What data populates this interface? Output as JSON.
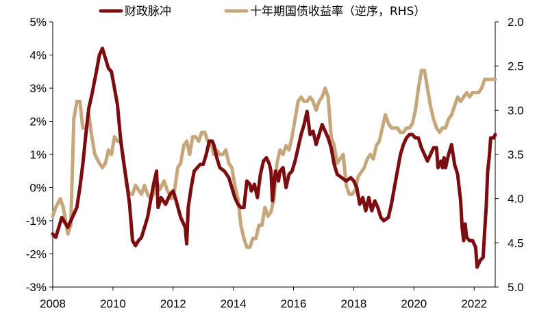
{
  "chart_data": {
    "type": "line",
    "title": "",
    "xlabel": "",
    "ylabel": "",
    "legend_placement": "top",
    "grid": false,
    "x_ticks": [
      "2008",
      "2010",
      "2012",
      "2014",
      "2016",
      "2018",
      "2020",
      "2022"
    ],
    "y_left_ticks": [
      "5%",
      "4%",
      "3%",
      "2%",
      "1%",
      "0%",
      "-1%",
      "-2%",
      "-3%"
    ],
    "y_right_ticks": [
      "2.0",
      "2.5",
      "3.0",
      "3.5",
      "4.0",
      "4.5",
      "5.0"
    ],
    "ylim_left": [
      -3,
      5
    ],
    "ylim_right_inverted": [
      2.0,
      5.0
    ],
    "xlim": [
      2008.0,
      2022.7
    ],
    "series": [
      {
        "name": "财政脉冲",
        "axis": "left",
        "color": "#7b0c10",
        "points": [
          [
            2008.0,
            -1.4
          ],
          [
            2008.1,
            -1.5
          ],
          [
            2008.3,
            -0.9
          ],
          [
            2008.5,
            -1.2
          ],
          [
            2008.65,
            -0.9
          ],
          [
            2008.8,
            -0.6
          ],
          [
            2008.9,
            0.0
          ],
          [
            2009.0,
            0.7
          ],
          [
            2009.1,
            1.6
          ],
          [
            2009.2,
            2.4
          ],
          [
            2009.3,
            2.8
          ],
          [
            2009.45,
            3.5
          ],
          [
            2009.55,
            4.0
          ],
          [
            2009.65,
            4.2
          ],
          [
            2009.75,
            3.9
          ],
          [
            2009.85,
            3.6
          ],
          [
            2009.95,
            3.5
          ],
          [
            2010.05,
            3.0
          ],
          [
            2010.15,
            2.5
          ],
          [
            2010.25,
            1.5
          ],
          [
            2010.35,
            0.8
          ],
          [
            2010.45,
            0.2
          ],
          [
            2010.55,
            -0.5
          ],
          [
            2010.65,
            -1.6
          ],
          [
            2010.75,
            -1.75
          ],
          [
            2010.85,
            -1.6
          ],
          [
            2010.95,
            -1.5
          ],
          [
            2011.05,
            -1.2
          ],
          [
            2011.15,
            -0.9
          ],
          [
            2011.25,
            -0.4
          ],
          [
            2011.35,
            0.1
          ],
          [
            2011.45,
            0.5
          ],
          [
            2011.5,
            -0.6
          ],
          [
            2011.6,
            -0.3
          ],
          [
            2011.75,
            -0.5
          ],
          [
            2011.9,
            -0.2
          ],
          [
            2012.0,
            -0.1
          ],
          [
            2012.1,
            -0.4
          ],
          [
            2012.25,
            -0.9
          ],
          [
            2012.4,
            -1.2
          ],
          [
            2012.45,
            -1.7
          ],
          [
            2012.5,
            -0.6
          ],
          [
            2012.6,
            0.0
          ],
          [
            2012.7,
            0.5
          ],
          [
            2012.8,
            0.6
          ],
          [
            2012.9,
            0.7
          ],
          [
            2013.0,
            0.7
          ],
          [
            2013.1,
            1.0
          ],
          [
            2013.2,
            1.4
          ],
          [
            2013.3,
            1.4
          ],
          [
            2013.35,
            1.3
          ],
          [
            2013.45,
            0.9
          ],
          [
            2013.55,
            0.6
          ],
          [
            2013.7,
            0.5
          ],
          [
            2013.85,
            0.3
          ],
          [
            2013.95,
            0.0
          ],
          [
            2014.05,
            -0.3
          ],
          [
            2014.15,
            -0.5
          ],
          [
            2014.25,
            -0.6
          ],
          [
            2014.35,
            -0.6
          ],
          [
            2014.45,
            0.2
          ],
          [
            2014.55,
            0.1
          ],
          [
            2014.6,
            -0.1
          ],
          [
            2014.7,
            0.1
          ],
          [
            2014.8,
            -0.3
          ],
          [
            2014.9,
            0.4
          ],
          [
            2015.0,
            0.8
          ],
          [
            2015.1,
            0.9
          ],
          [
            2015.2,
            0.7
          ],
          [
            2015.25,
            0.5
          ],
          [
            2015.3,
            -0.4
          ],
          [
            2015.4,
            0.5
          ],
          [
            2015.5,
            0.2
          ],
          [
            2015.55,
            0.5
          ],
          [
            2015.65,
            0.6
          ],
          [
            2015.75,
            0.0
          ],
          [
            2015.85,
            0.4
          ],
          [
            2015.95,
            0.5
          ],
          [
            2016.05,
            0.8
          ],
          [
            2016.15,
            1.2
          ],
          [
            2016.25,
            1.6
          ],
          [
            2016.35,
            1.9
          ],
          [
            2016.45,
            2.3
          ],
          [
            2016.55,
            1.6
          ],
          [
            2016.65,
            1.7
          ],
          [
            2016.75,
            1.3
          ],
          [
            2016.85,
            1.6
          ],
          [
            2016.95,
            1.9
          ],
          [
            2017.05,
            1.7
          ],
          [
            2017.15,
            1.5
          ],
          [
            2017.25,
            1.2
          ],
          [
            2017.35,
            0.7
          ],
          [
            2017.45,
            0.4
          ],
          [
            2017.6,
            0.3
          ],
          [
            2017.75,
            0.2
          ],
          [
            2017.9,
            0.3
          ],
          [
            2018.0,
            0.2
          ],
          [
            2018.1,
            0.0
          ],
          [
            2018.2,
            -0.5
          ],
          [
            2018.3,
            -0.3
          ],
          [
            2018.4,
            -0.7
          ],
          [
            2018.5,
            -0.3
          ],
          [
            2018.6,
            -0.7
          ],
          [
            2018.7,
            -0.4
          ],
          [
            2018.8,
            -0.6
          ],
          [
            2018.9,
            -0.9
          ],
          [
            2019.0,
            -1.0
          ],
          [
            2019.15,
            -0.9
          ],
          [
            2019.25,
            -0.5
          ],
          [
            2019.35,
            0.0
          ],
          [
            2019.45,
            0.5
          ],
          [
            2019.55,
            1.0
          ],
          [
            2019.65,
            1.3
          ],
          [
            2019.75,
            1.5
          ],
          [
            2019.85,
            1.6
          ],
          [
            2019.95,
            1.6
          ],
          [
            2020.05,
            1.5
          ],
          [
            2020.15,
            1.5
          ],
          [
            2020.25,
            1.2
          ],
          [
            2020.35,
            1.0
          ],
          [
            2020.45,
            0.8
          ],
          [
            2020.55,
            1.0
          ],
          [
            2020.65,
            1.2
          ],
          [
            2020.75,
            1.2
          ],
          [
            2020.8,
            0.6
          ],
          [
            2020.9,
            0.8
          ],
          [
            2020.95,
            0.6
          ],
          [
            2021.0,
            0.9
          ],
          [
            2021.05,
            0.6
          ],
          [
            2021.15,
            1.0
          ],
          [
            2021.25,
            1.3
          ],
          [
            2021.35,
            0.7
          ],
          [
            2021.45,
            0.4
          ],
          [
            2021.55,
            -0.4
          ],
          [
            2021.6,
            -1.2
          ],
          [
            2021.65,
            -1.6
          ],
          [
            2021.7,
            -1.1
          ],
          [
            2021.75,
            -1.5
          ],
          [
            2021.85,
            -1.6
          ],
          [
            2021.95,
            -1.6
          ],
          [
            2022.05,
            -1.8
          ],
          [
            2022.1,
            -2.4
          ],
          [
            2022.2,
            -2.2
          ],
          [
            2022.3,
            -2.1
          ],
          [
            2022.35,
            -1.3
          ],
          [
            2022.4,
            -0.6
          ],
          [
            2022.45,
            0.5
          ],
          [
            2022.5,
            0.9
          ],
          [
            2022.55,
            1.5
          ],
          [
            2022.65,
            1.5
          ],
          [
            2022.7,
            1.6
          ]
        ]
      },
      {
        "name": "十年期国债收益率（逆序，RHS）",
        "axis": "right",
        "color": "#c6a67b",
        "points": [
          [
            2008.0,
            4.2
          ],
          [
            2008.1,
            4.1
          ],
          [
            2008.25,
            4.0
          ],
          [
            2008.35,
            4.1
          ],
          [
            2008.5,
            4.4
          ],
          [
            2008.6,
            4.3
          ],
          [
            2008.7,
            3.1
          ],
          [
            2008.8,
            2.9
          ],
          [
            2008.9,
            2.9
          ],
          [
            2009.0,
            3.2
          ],
          [
            2009.1,
            3.2
          ],
          [
            2009.2,
            3.05
          ],
          [
            2009.3,
            3.3
          ],
          [
            2009.4,
            3.5
          ],
          [
            2009.55,
            3.6
          ],
          [
            2009.65,
            3.65
          ],
          [
            2009.75,
            3.6
          ],
          [
            2009.85,
            3.45
          ],
          [
            2009.95,
            3.5
          ],
          [
            2010.05,
            3.3
          ],
          [
            2010.15,
            3.35
          ],
          [
            2010.25,
            3.35
          ],
          [
            2010.35,
            3.55
          ],
          [
            2010.45,
            3.85
          ],
          [
            2010.55,
            3.95
          ],
          [
            2010.65,
            3.95
          ],
          [
            2010.75,
            3.85
          ],
          [
            2010.85,
            3.9
          ],
          [
            2010.95,
            3.95
          ],
          [
            2011.05,
            3.85
          ],
          [
            2011.15,
            3.95
          ],
          [
            2011.25,
            4.0
          ],
          [
            2011.35,
            3.95
          ],
          [
            2011.45,
            3.8
          ],
          [
            2011.55,
            3.9
          ],
          [
            2011.7,
            3.8
          ],
          [
            2011.8,
            3.9
          ],
          [
            2011.95,
            4.0
          ],
          [
            2012.05,
            3.9
          ],
          [
            2012.15,
            3.65
          ],
          [
            2012.25,
            3.6
          ],
          [
            2012.35,
            3.4
          ],
          [
            2012.45,
            3.35
          ],
          [
            2012.55,
            3.5
          ],
          [
            2012.65,
            3.3
          ],
          [
            2012.75,
            3.3
          ],
          [
            2012.85,
            3.35
          ],
          [
            2012.95,
            3.25
          ],
          [
            2013.05,
            3.25
          ],
          [
            2013.15,
            3.35
          ],
          [
            2013.25,
            3.35
          ],
          [
            2013.35,
            3.5
          ],
          [
            2013.45,
            3.45
          ],
          [
            2013.55,
            3.5
          ],
          [
            2013.65,
            3.5
          ],
          [
            2013.75,
            3.45
          ],
          [
            2013.85,
            3.6
          ],
          [
            2013.95,
            3.65
          ],
          [
            2014.05,
            3.85
          ],
          [
            2014.15,
            4.0
          ],
          [
            2014.25,
            4.3
          ],
          [
            2014.35,
            4.45
          ],
          [
            2014.45,
            4.55
          ],
          [
            2014.55,
            4.55
          ],
          [
            2014.65,
            4.45
          ],
          [
            2014.75,
            4.45
          ],
          [
            2014.85,
            4.3
          ],
          [
            2014.95,
            4.3
          ],
          [
            2015.05,
            4.1
          ],
          [
            2015.15,
            4.2
          ],
          [
            2015.25,
            4.15
          ],
          [
            2015.35,
            4.0
          ],
          [
            2015.45,
            3.6
          ],
          [
            2015.55,
            3.45
          ],
          [
            2015.65,
            3.5
          ],
          [
            2015.75,
            3.4
          ],
          [
            2015.85,
            3.45
          ],
          [
            2015.95,
            3.3
          ],
          [
            2016.05,
            3.1
          ],
          [
            2016.15,
            2.9
          ],
          [
            2016.25,
            2.85
          ],
          [
            2016.35,
            2.9
          ],
          [
            2016.45,
            2.9
          ],
          [
            2016.55,
            2.85
          ],
          [
            2016.65,
            2.9
          ],
          [
            2016.75,
            3.0
          ],
          [
            2016.85,
            2.9
          ],
          [
            2016.95,
            2.85
          ],
          [
            2017.05,
            2.75
          ],
          [
            2017.15,
            2.85
          ],
          [
            2017.25,
            3.3
          ],
          [
            2017.35,
            3.4
          ],
          [
            2017.45,
            3.6
          ],
          [
            2017.55,
            3.55
          ],
          [
            2017.65,
            3.5
          ],
          [
            2017.75,
            3.85
          ],
          [
            2017.85,
            3.95
          ],
          [
            2017.95,
            3.95
          ],
          [
            2018.05,
            3.9
          ],
          [
            2018.15,
            3.75
          ],
          [
            2018.25,
            3.7
          ],
          [
            2018.35,
            3.65
          ],
          [
            2018.45,
            3.55
          ],
          [
            2018.55,
            3.5
          ],
          [
            2018.65,
            3.55
          ],
          [
            2018.75,
            3.4
          ],
          [
            2018.85,
            3.35
          ],
          [
            2018.95,
            3.2
          ],
          [
            2019.05,
            3.05
          ],
          [
            2019.15,
            3.15
          ],
          [
            2019.25,
            3.2
          ],
          [
            2019.35,
            3.2
          ],
          [
            2019.45,
            3.2
          ],
          [
            2019.55,
            3.25
          ],
          [
            2019.65,
            3.25
          ],
          [
            2019.75,
            3.2
          ],
          [
            2019.85,
            3.2
          ],
          [
            2019.95,
            3.15
          ],
          [
            2020.05,
            3.0
          ],
          [
            2020.15,
            2.75
          ],
          [
            2020.25,
            2.55
          ],
          [
            2020.35,
            2.55
          ],
          [
            2020.45,
            2.75
          ],
          [
            2020.55,
            2.95
          ],
          [
            2020.65,
            3.1
          ],
          [
            2020.75,
            3.2
          ],
          [
            2020.85,
            3.25
          ],
          [
            2020.95,
            3.2
          ],
          [
            2021.05,
            3.2
          ],
          [
            2021.15,
            3.1
          ],
          [
            2021.25,
            3.05
          ],
          [
            2021.35,
            2.95
          ],
          [
            2021.45,
            2.85
          ],
          [
            2021.55,
            2.9
          ],
          [
            2021.65,
            2.85
          ],
          [
            2021.75,
            2.8
          ],
          [
            2021.85,
            2.85
          ],
          [
            2021.95,
            2.8
          ],
          [
            2022.05,
            2.8
          ],
          [
            2022.15,
            2.8
          ],
          [
            2022.25,
            2.75
          ],
          [
            2022.35,
            2.65
          ],
          [
            2022.45,
            2.65
          ],
          [
            2022.55,
            2.65
          ],
          [
            2022.65,
            2.65
          ],
          [
            2022.7,
            2.65
          ]
        ]
      }
    ]
  }
}
